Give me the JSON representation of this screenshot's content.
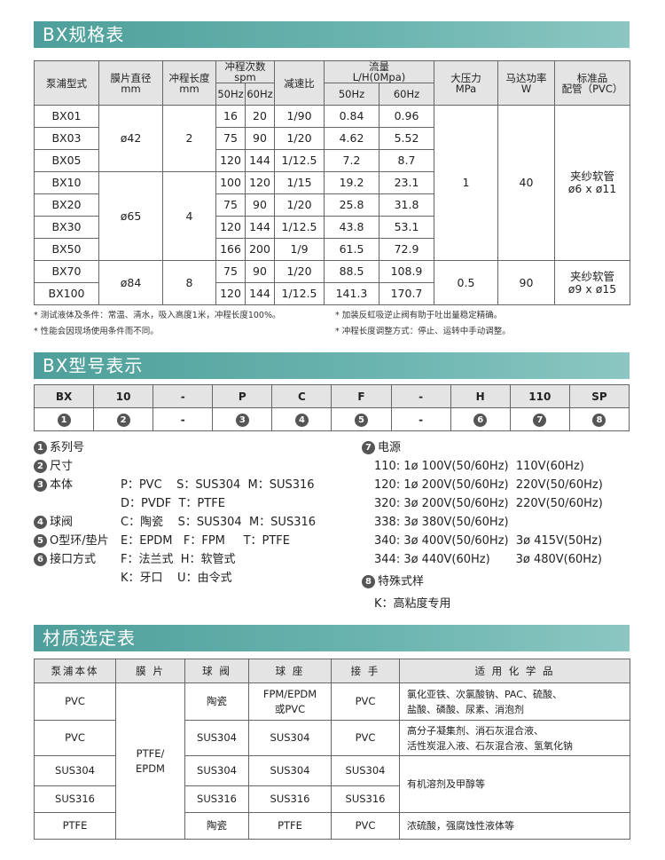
{
  "spec": {
    "title": "BX规格表",
    "headers": [
      "泵浦型式",
      "膜片直径\nmm",
      "冲程长度\nmm",
      "冲程次数\nspm",
      "减速比",
      "流量\nL/H(0Mpa)",
      "大压力\nMPa",
      "马达功率\nW",
      "标准品\n配管（PVC）"
    ],
    "subheaders": [
      "50Hz",
      "60Hz",
      "50Hz",
      "60Hz"
    ],
    "rows": [
      [
        "BX01",
        "ø42",
        2,
        16,
        20,
        "1/90",
        0.84,
        0.96,
        1,
        40,
        "夹纱软管\nø6 x ø11"
      ],
      [
        "BX03",
        null,
        null,
        75,
        90,
        "1/20",
        4.62,
        5.52,
        null,
        null,
        null
      ],
      [
        "BX05",
        null,
        null,
        120,
        144,
        "1/12.5",
        7.2,
        8.7,
        null,
        null,
        null
      ],
      [
        "BX10",
        "ø65",
        4,
        100,
        120,
        "1/15",
        19.2,
        23.1,
        null,
        null,
        null
      ],
      [
        "BX20",
        null,
        null,
        75,
        90,
        "1/20",
        25.8,
        31.8,
        null,
        null,
        null
      ],
      [
        "BX30",
        null,
        null,
        120,
        144,
        "1/12.5",
        43.8,
        53.1,
        null,
        null,
        null
      ],
      [
        "BX50",
        null,
        null,
        166,
        200,
        "1/9",
        61.5,
        72.9,
        null,
        null,
        null
      ],
      [
        "BX70",
        "ø84",
        8,
        75,
        90,
        "1/20",
        88.5,
        108.9,
        0.5,
        90,
        "夹纱软管\nø9 x ø15"
      ],
      [
        "BX100",
        null,
        null,
        120,
        144,
        "1/12.5",
        141.3,
        170.7,
        null,
        null,
        null
      ]
    ],
    "notes": [
      "* 测试液体及条件：常温、清水，吸入高度1米，冲程长度100%。",
      "* 加装反虹吸逆止阀有助于吐出量稳定精确。",
      "* 性能会因现场使用条件而不同。",
      "* 冲程长度调整方式：停止、运转中手动调整。"
    ]
  },
  "model": {
    "title": "BX型号表示",
    "codes": [
      "BX",
      "10",
      "-",
      "P",
      "C",
      "F",
      "-",
      "H",
      "110",
      "SP"
    ],
    "marks": [
      "1",
      "2",
      "-",
      "3",
      "4",
      "5",
      "-",
      "6",
      "7",
      "8"
    ],
    "left": [
      {
        "num": "1",
        "label": "系列号",
        "lines": []
      },
      {
        "num": "2",
        "label": "尺寸",
        "lines": []
      },
      {
        "num": "3",
        "label": "本体",
        "lines": [
          "P：PVC    S：SUS304  M：SUS316",
          "D：PVDF  T：PTFE"
        ]
      },
      {
        "num": "4",
        "label": "球阀",
        "lines": [
          "C：陶瓷    S：SUS304  M：SUS316"
        ]
      },
      {
        "num": "5",
        "label": "O型环/垫片",
        "lines": [
          "E：EPDM   F：FPM     T：PTFE"
        ]
      },
      {
        "num": "6",
        "label": "接口方式",
        "lines": [
          "F：法兰式  H：软管式",
          "K：牙口    U：由令式"
        ]
      }
    ],
    "right": [
      {
        "num": "7",
        "label": "电源",
        "lines": [
          "110: 1ø 100V(50/60Hz)  110V(60Hz)",
          "120: 1ø 200V(50/60Hz)  220V(50/60Hz)",
          "320: 3ø 200V(50/60Hz)  220V(50/60Hz)",
          "338: 3ø 380V(50/60Hz)",
          "340: 3ø 400V(50/60Hz)  3ø 415V(50Hz)",
          "344: 3ø 440V(60Hz)       3ø 480V(60Hz)"
        ]
      },
      {
        "num": "8",
        "label": "特殊式样",
        "lines": [
          "K：高粘度专用"
        ]
      }
    ]
  },
  "material": {
    "title": "材质选定表",
    "headers": [
      "泵浦本体",
      "膜 片",
      "球 阀",
      "球 座",
      "接 手",
      "适 用 化 学 品"
    ],
    "rows": [
      [
        "PVC",
        "PTFE/\nEPDM",
        "陶瓷",
        "FPM/EPDM\n或PVC",
        "PVC",
        "氯化亚铁、次氯酸钠、PAC、硫酸、\n盐酸、磷酸、尿素、消泡剂"
      ],
      [
        "PVC",
        null,
        "SUS304",
        "SUS304",
        "PVC",
        "高分子凝集剂、消石灰混合液、\n活性炭混入液、石灰混合液、氢氧化钠"
      ],
      [
        "SUS304",
        null,
        "SUS304",
        "SUS304",
        "SUS304",
        "有机溶剂及甲醇等"
      ],
      [
        "SUS316",
        null,
        "SUS316",
        "SUS316",
        "SUS316",
        null
      ],
      [
        "PTFE",
        null,
        "陶瓷",
        "PTFE",
        "PVC",
        "浓硫酸，强腐蚀性液体等"
      ]
    ]
  }
}
